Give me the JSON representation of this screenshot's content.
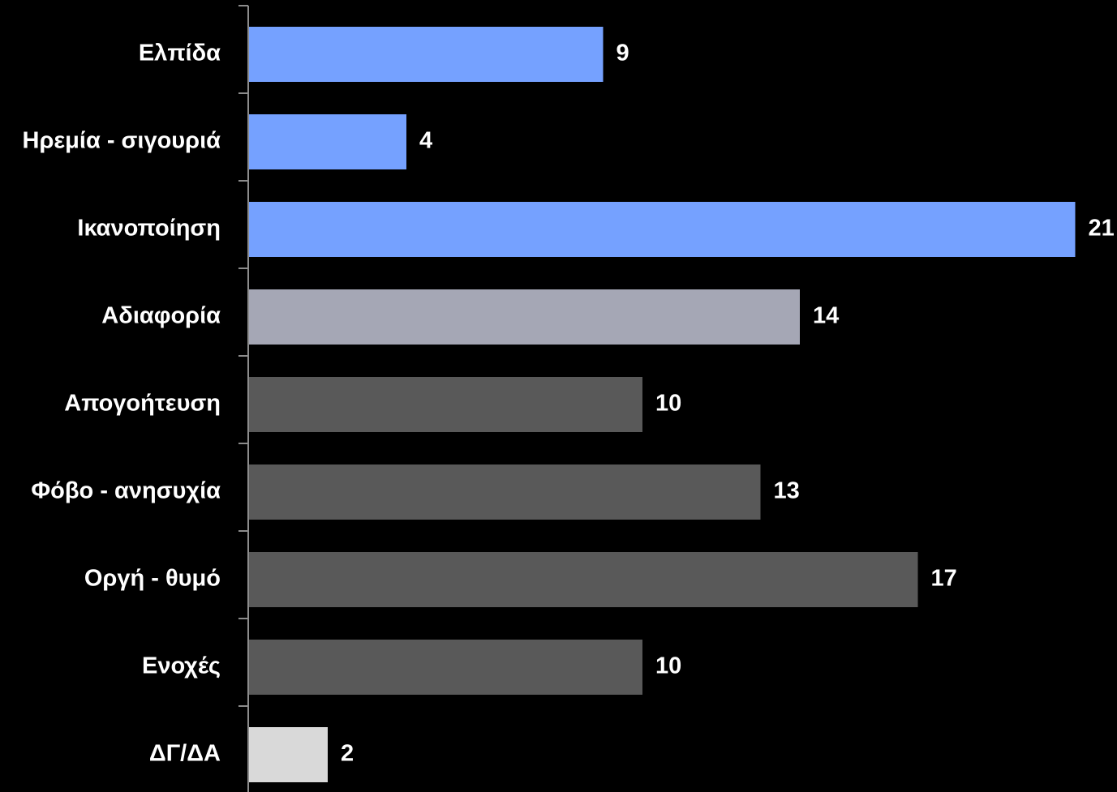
{
  "chart_data": {
    "type": "bar",
    "orientation": "horizontal",
    "title": "",
    "xlabel": "",
    "ylabel": "",
    "categories": [
      "Ελπίδα",
      "Ηρεμία - σιγουριά",
      "Ικανοποίηση",
      "Αδιαφορία",
      "Απογοήτευση",
      "Φόβο - ανησυχία",
      "Οργή - θυμό",
      "Ενοχές",
      "ΔΓ/ΔΑ"
    ],
    "values": [
      9,
      4,
      21,
      14,
      10,
      13,
      17,
      10,
      2
    ],
    "data_labels": [
      "9",
      "4",
      "21",
      "14",
      "10",
      "13",
      "17",
      "10",
      "2"
    ],
    "bar_colors": [
      "#75a1ff",
      "#75a1ff",
      "#75a1ff",
      "#a5a7b5",
      "#595959",
      "#595959",
      "#595959",
      "#595959",
      "#d9d9d9"
    ],
    "xlim": [
      0,
      21
    ],
    "grid": false,
    "legend": "none",
    "background": "#000000",
    "text_color": "#ffffff",
    "axis_color": "#8c8c8c"
  }
}
